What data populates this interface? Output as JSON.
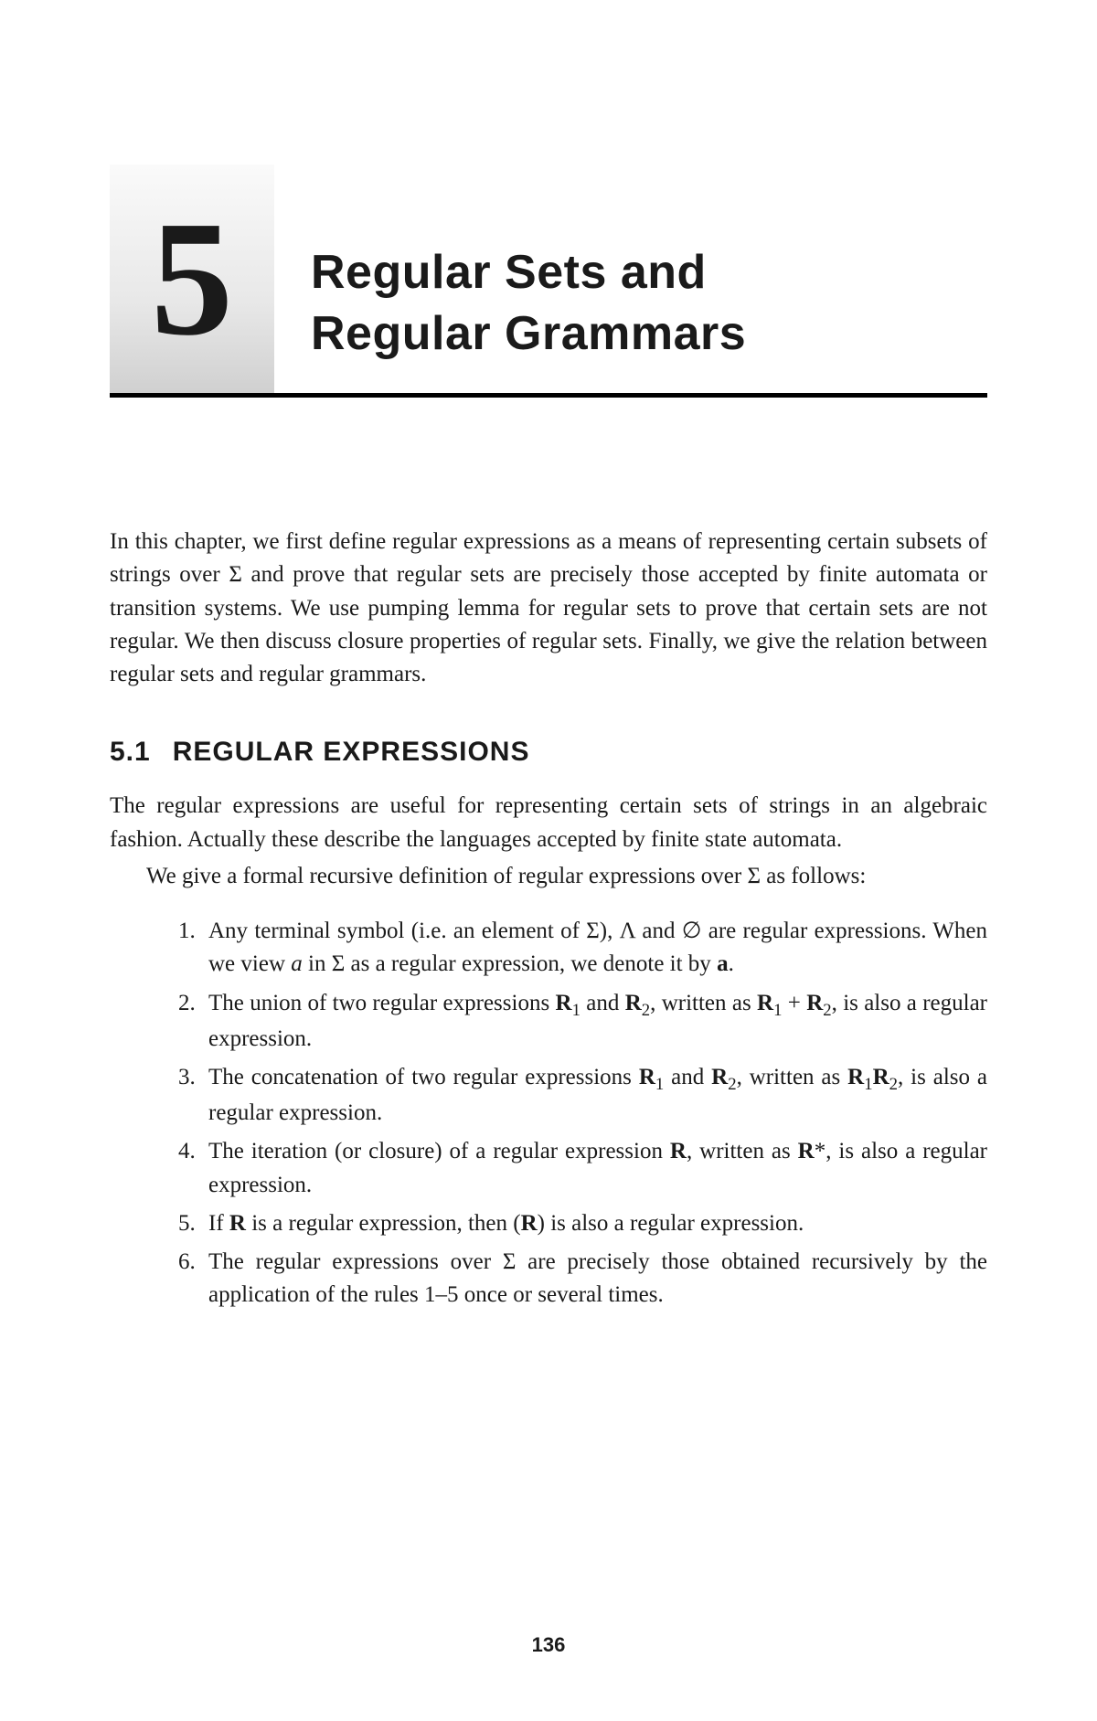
{
  "chapter": {
    "number": "5",
    "title_line1": "Regular Sets and",
    "title_line2": "Regular Grammars"
  },
  "intro": "In this chapter, we first define regular expressions as a means of representing certain subsets of strings over Σ and prove that regular sets are precisely those accepted by finite automata or transition systems. We use pumping lemma for regular sets to prove that certain sets are not regular. We then discuss closure properties of regular sets. Finally, we give the relation between regular sets and regular grammars.",
  "section": {
    "number": "5.1",
    "title": "REGULAR EXPRESSIONS"
  },
  "para1": "The regular expressions are useful for representing certain sets of strings in an algebraic fashion. Actually these describe the languages accepted by finite state automata.",
  "para2": "We give a formal recursive definition of regular expressions over Σ as follows:",
  "definitions": {
    "item1_a": "Any terminal symbol (i.e. an element of Σ), Λ and ∅ are regular expressions. When we view ",
    "item1_b": " in Σ as a regular expression, we denote it by ",
    "item1_bold": "a",
    "item1_c": ".",
    "item2_a": "The union of two regular expressions ",
    "item2_r1": "R",
    "item2_b": " and ",
    "item2_r2": "R",
    "item2_c": ", written as ",
    "item2_r3": "R",
    "item2_d": " + ",
    "item2_r4": "R",
    "item2_e": ", is also a regular expression.",
    "item3_a": "The concatenation of two regular expressions ",
    "item3_b": " and ",
    "item3_c": ", written as ",
    "item3_d": ", is also a regular expression.",
    "item4_a": "The iteration (or closure) of a regular expression ",
    "item4_b": ", written as ",
    "item4_c": "*, is also a regular expression.",
    "item5_a": "If ",
    "item5_b": " is a regular expression, then (",
    "item5_c": ") is also a regular expression.",
    "item6": "The regular expressions over Σ are precisely those obtained recursively by the application of the rules 1–5 once or several times."
  },
  "italic_a": "a",
  "R": "R",
  "sub1": "1",
  "sub2": "2",
  "page_number": "136"
}
